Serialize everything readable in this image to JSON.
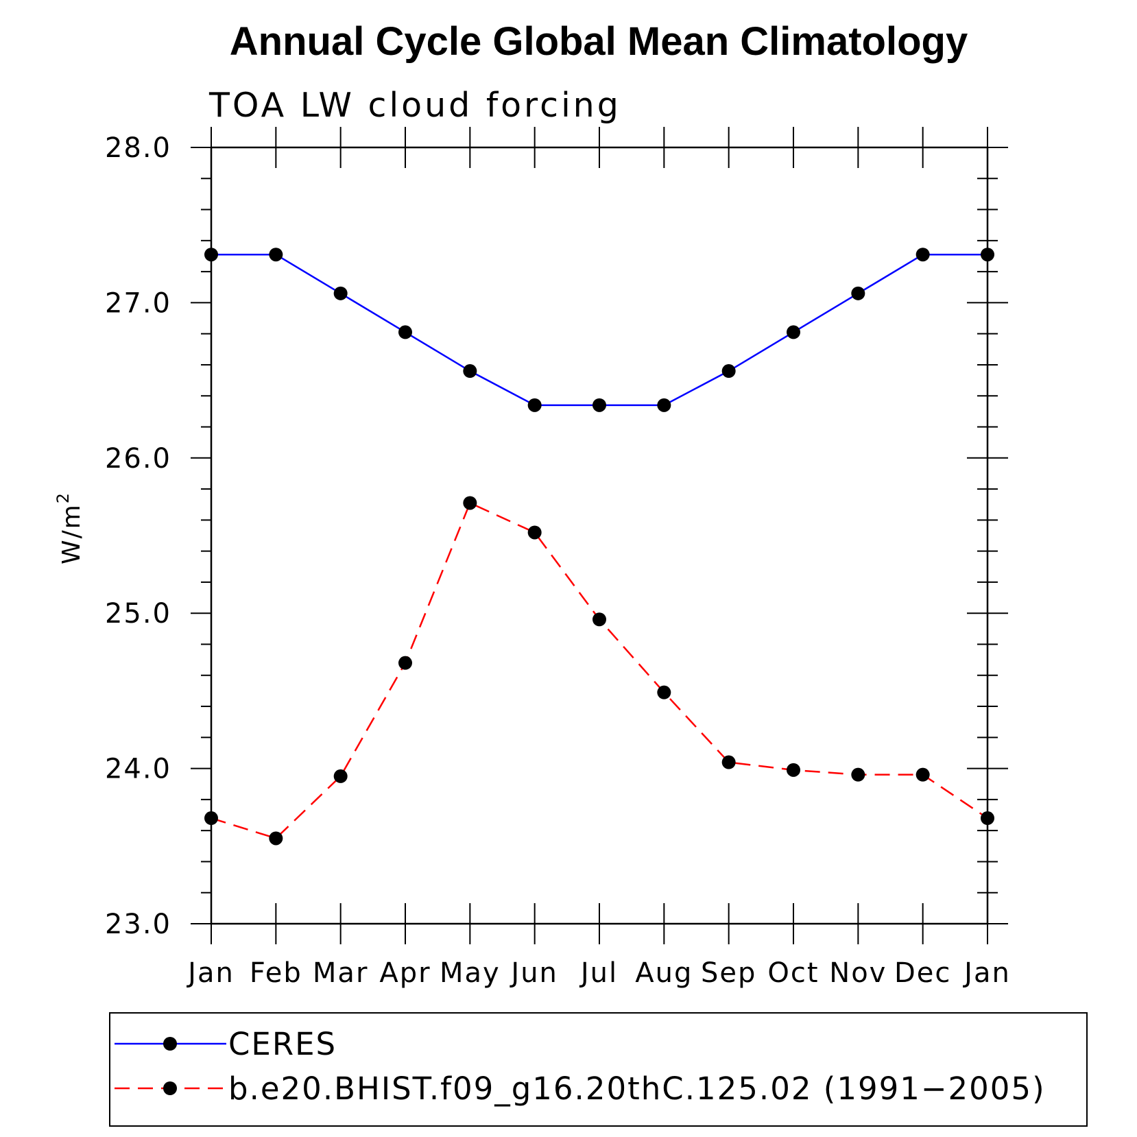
{
  "chart_data": {
    "type": "line",
    "title": "Annual Cycle Global Mean Climatology",
    "subtitle": "TOA LW cloud forcing",
    "ylabel": "W/m",
    "ylabel_superscript": "2",
    "xlabel": "",
    "categories": [
      "Jan",
      "Feb",
      "Mar",
      "Apr",
      "May",
      "Jun",
      "Jul",
      "Aug",
      "Sep",
      "Oct",
      "Nov",
      "Dec",
      "Jan"
    ],
    "ylim": [
      23.0,
      28.0
    ],
    "yticks": [
      "23.0",
      "24.0",
      "25.0",
      "26.0",
      "27.0",
      "28.0"
    ],
    "grid": false,
    "legend_position": "bottom",
    "series": [
      {
        "name": "CERES",
        "color": "#0000ff",
        "style": "solid",
        "marker": "circle",
        "values": [
          27.31,
          27.31,
          27.06,
          26.81,
          26.56,
          26.34,
          26.34,
          26.34,
          26.56,
          26.81,
          27.06,
          27.31,
          27.31
        ]
      },
      {
        "name": "b.e20.BHIST.f09_g16.20thC.125.02 (1991−2005)",
        "color": "#ff0000",
        "style": "dashed",
        "marker": "circle",
        "values": [
          23.68,
          23.55,
          23.95,
          24.68,
          25.71,
          25.52,
          24.96,
          24.49,
          24.04,
          23.99,
          23.96,
          23.96,
          23.68
        ]
      }
    ]
  }
}
